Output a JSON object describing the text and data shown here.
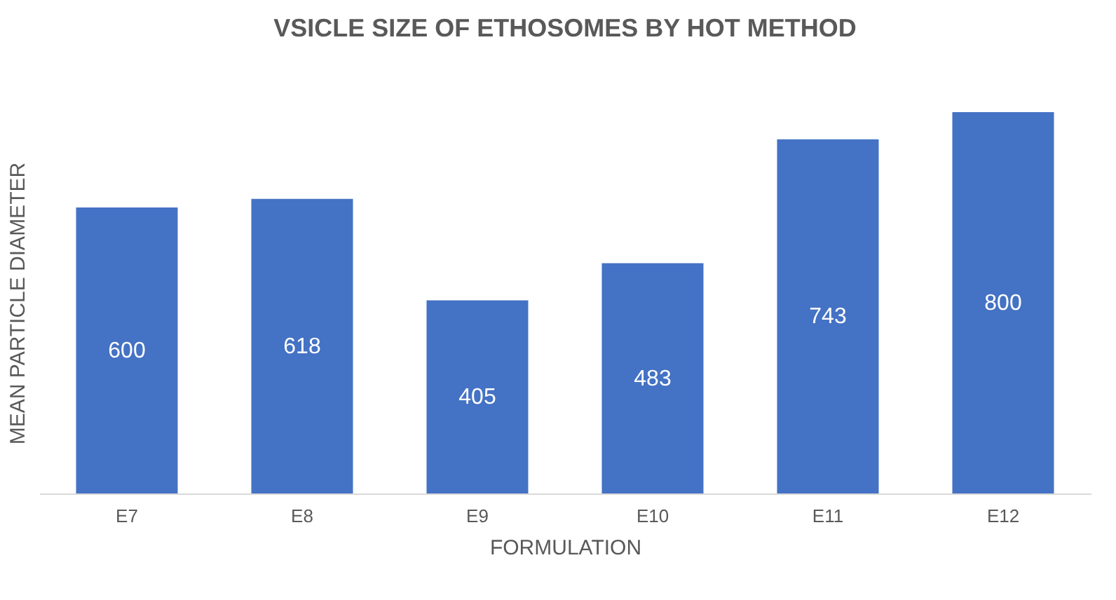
{
  "chart_data": {
    "type": "bar",
    "title": "VSICLE SIZE OF ETHOSOMES BY HOT METHOD",
    "xlabel": "FORMULATION",
    "ylabel": "MEAN PARTICLE DIAMETER",
    "categories": [
      "E7",
      "E8",
      "E9",
      "E10",
      "E11",
      "E12"
    ],
    "values": [
      600,
      618,
      405,
      483,
      743,
      800
    ],
    "color": "#4472c4",
    "data_labels": true,
    "grid": false
  }
}
